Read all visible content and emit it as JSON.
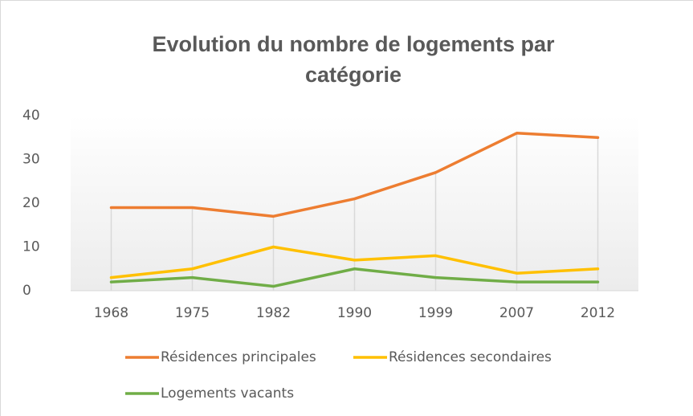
{
  "chart_data": {
    "type": "line",
    "title": "Evolution du nombre de logements par catégorie",
    "categories": [
      "1968",
      "1975",
      "1982",
      "1990",
      "1999",
      "2007",
      "2012"
    ],
    "series": [
      {
        "name": "Résidences principales",
        "color": "#ed7d31",
        "values": [
          19,
          19,
          17,
          21,
          27,
          36,
          35
        ]
      },
      {
        "name": "Résidences secondaires",
        "color": "#ffc000",
        "values": [
          3,
          5,
          10,
          7,
          8,
          4,
          5
        ]
      },
      {
        "name": "Logements vacants",
        "color": "#70ad47",
        "values": [
          2,
          3,
          1,
          5,
          3,
          2,
          2
        ]
      }
    ],
    "ylim": [
      0,
      40
    ],
    "yticks": [
      0,
      10,
      20,
      30,
      40
    ],
    "grid": false,
    "legend": "bottom"
  }
}
